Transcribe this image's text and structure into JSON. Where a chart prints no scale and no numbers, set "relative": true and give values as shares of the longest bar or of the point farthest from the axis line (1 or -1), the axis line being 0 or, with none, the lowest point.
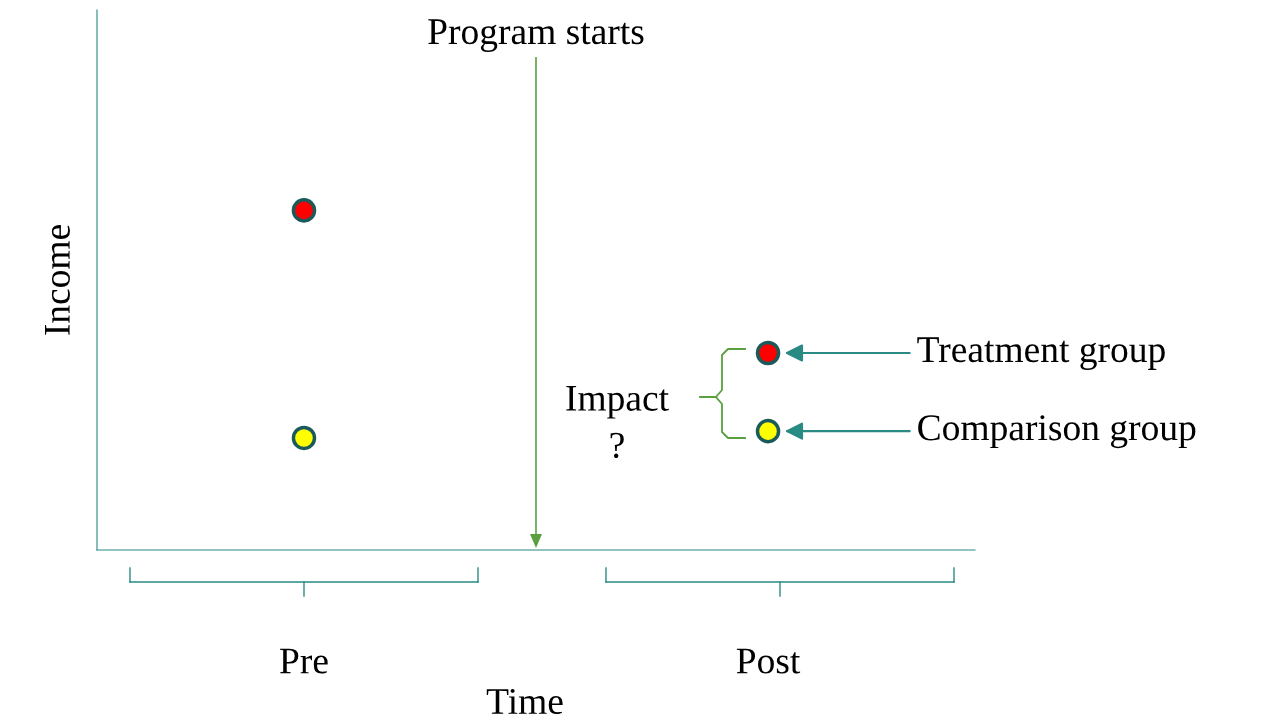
{
  "chart_data": {
    "type": "scatter",
    "relative": true,
    "xlabel": "Time",
    "ylabel": "Income",
    "categories": [
      "Pre",
      "Post"
    ],
    "series": [
      {
        "name": "Treatment group",
        "color": "#ff0000",
        "values": [
          1,
          0.58
        ]
      },
      {
        "name": "Comparison group",
        "color": "#ffff00",
        "values": [
          0.33,
          0.35
        ]
      }
    ],
    "annotations": [
      "Program starts",
      "Impact\n?"
    ],
    "marker": "circle",
    "grid": false,
    "legend": false
  }
}
